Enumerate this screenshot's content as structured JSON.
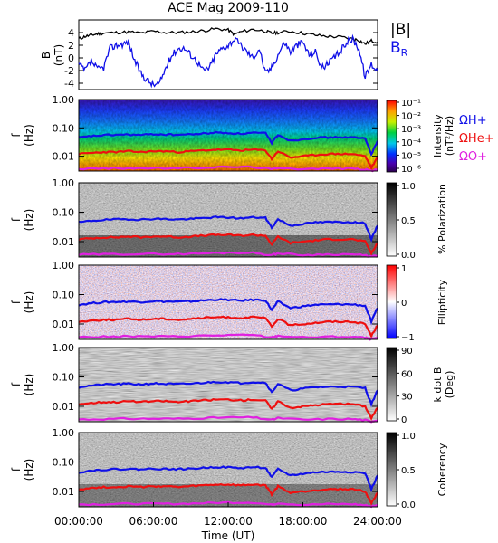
{
  "chart_data": {
    "type": "line",
    "title": "ACE Mag 2009-110",
    "xlabel": "Time (UT)",
    "x_ticks": [
      "00:00:00",
      "06:00:00",
      "12:00:00",
      "18:00:00",
      "24:00:00"
    ],
    "xlim_hours": [
      0,
      24
    ],
    "panels": [
      {
        "id": "b-field",
        "ylabel": [
          "B",
          "(nT)"
        ],
        "y_ticks": [
          "4",
          "2",
          "0",
          "-2",
          "-4"
        ],
        "ylim": [
          -5,
          6
        ],
        "legend": {
          "b_total": "|B|",
          "b_r": "B",
          "b_r_sub": "R"
        },
        "series": [
          {
            "name": "|B|",
            "color": "#000000",
            "x": [
              0,
              0.5,
              1,
              1.5,
              2,
              3,
              4,
              5,
              6,
              7,
              8,
              9,
              10,
              11,
              12,
              12.5,
              13,
              14,
              15,
              15.5,
              16,
              17,
              18,
              19,
              20,
              21,
              22,
              22.5,
              23,
              23.5,
              24
            ],
            "values": [
              3.0,
              3.4,
              3.6,
              3.8,
              3.9,
              4.0,
              4.1,
              3.9,
              4.2,
              4.0,
              4.0,
              4.1,
              4.3,
              4.6,
              4.4,
              3.7,
              4.1,
              4.5,
              4.2,
              3.9,
              4.0,
              4.2,
              3.9,
              3.6,
              3.4,
              3.3,
              3.0,
              2.8,
              2.2,
              2.7,
              2.5
            ]
          },
          {
            "name": "B",
            "color": "#1010e8",
            "x": [
              0,
              0.5,
              1,
              1.5,
              2,
              2.5,
              3,
              3.5,
              4,
              4.5,
              5,
              5.5,
              6,
              6.5,
              7,
              7.5,
              8,
              8.5,
              9,
              9.5,
              10,
              10.5,
              11,
              11.5,
              12,
              12.5,
              13,
              13.5,
              14,
              14.5,
              15,
              15.5,
              16,
              16.5,
              17,
              17.5,
              18,
              18.5,
              19,
              19.5,
              20,
              20.5,
              21,
              21.5,
              22,
              22.5,
              23,
              23.5,
              24
            ],
            "values": [
              -1.0,
              -2.0,
              -0.5,
              -1.8,
              -1.5,
              1.5,
              2.0,
              2.2,
              2.5,
              -0.5,
              -2.5,
              -3.5,
              -4.3,
              -4.0,
              -1.5,
              0.5,
              1.5,
              1.5,
              0.5,
              -0.5,
              -2.0,
              -1.5,
              0.5,
              1.5,
              2.0,
              3.0,
              2.0,
              1.0,
              0.0,
              1.5,
              -2.5,
              -1.5,
              0.5,
              2.5,
              1.0,
              2.0,
              2.5,
              0.5,
              1.0,
              -1.5,
              -1.0,
              0.0,
              1.0,
              2.5,
              3.0,
              1.5,
              -3.0,
              -1.0,
              -2.0
            ]
          }
        ]
      },
      {
        "id": "intensity",
        "kind": "spectrogram",
        "ylabel": [
          "f",
          "(Hz)"
        ],
        "y_ticks": [
          "1.00",
          "0.10",
          "0.01"
        ],
        "ylim_hz": [
          0.003,
          1.0
        ],
        "yscale": "log",
        "colorbar": {
          "label": "Intensity",
          "unit": "(nT²/Hz)",
          "ticks": [
            "10⁻¹",
            "10⁻²",
            "10⁻³",
            "10⁻⁴",
            "10⁻⁵",
            "10⁻⁶"
          ],
          "colormap": "rainbow"
        },
        "gyro_labels": [
          "ΩH+",
          "ΩHe+",
          "ΩO+"
        ]
      },
      {
        "id": "polarization",
        "kind": "spectrogram",
        "ylabel": [
          "f",
          "(Hz)"
        ],
        "y_ticks": [
          "1.00",
          "0.10",
          "0.01"
        ],
        "colorbar": {
          "label": "% Polarization",
          "ticks": [
            "1.0",
            "0.5",
            "0.0"
          ],
          "colormap": "gray"
        }
      },
      {
        "id": "ellipticity",
        "kind": "spectrogram",
        "ylabel": [
          "f",
          "(Hz)"
        ],
        "y_ticks": [
          "1.00",
          "0.10",
          "0.01"
        ],
        "colorbar": {
          "label": "Ellipticity",
          "ticks": [
            "1",
            "0",
            "−1"
          ],
          "colormap": "red-white-blue"
        }
      },
      {
        "id": "kdotb",
        "kind": "spectrogram",
        "ylabel": [
          "f",
          "(Hz)"
        ],
        "y_ticks": [
          "1.00",
          "0.10",
          "0.01"
        ],
        "colorbar": {
          "label": "k dot B",
          "unit": "(Deg)",
          "ticks": [
            "90",
            "60",
            "30",
            "0"
          ],
          "colormap": "gray-reversed"
        }
      },
      {
        "id": "coherency",
        "kind": "spectrogram",
        "ylabel": [
          "f",
          "(Hz)"
        ],
        "y_ticks": [
          "1.00",
          "0.10",
          "0.01"
        ],
        "colorbar": {
          "label": "Coherency",
          "ticks": [
            "1.0",
            "0.5",
            "0.0"
          ],
          "colormap": "gray"
        }
      }
    ],
    "gyrofrequency_series": [
      {
        "name": "ΩH+",
        "color": "#1010e8",
        "x": [
          0,
          1,
          2,
          3,
          4,
          5,
          6,
          7,
          8,
          9,
          10,
          11,
          12,
          13,
          14,
          15,
          15.5,
          16,
          17,
          18,
          19,
          20,
          21,
          22,
          23,
          23.5,
          24
        ],
        "values_hz": [
          0.045,
          0.051,
          0.055,
          0.057,
          0.058,
          0.056,
          0.06,
          0.058,
          0.057,
          0.059,
          0.063,
          0.068,
          0.066,
          0.062,
          0.067,
          0.064,
          0.03,
          0.058,
          0.035,
          0.04,
          0.045,
          0.046,
          0.047,
          0.046,
          0.042,
          0.012,
          0.035
        ]
      },
      {
        "name": "ΩHe+",
        "color": "#ee1010",
        "x": [
          0,
          1,
          2,
          3,
          4,
          5,
          6,
          7,
          8,
          9,
          10,
          11,
          12,
          13,
          14,
          15,
          15.5,
          16,
          17,
          18,
          19,
          20,
          21,
          22,
          23,
          23.5,
          24
        ],
        "values_hz": [
          0.012,
          0.013,
          0.014,
          0.014,
          0.015,
          0.014,
          0.015,
          0.015,
          0.014,
          0.015,
          0.016,
          0.017,
          0.017,
          0.016,
          0.017,
          0.016,
          0.008,
          0.015,
          0.009,
          0.01,
          0.011,
          0.012,
          0.012,
          0.012,
          0.01,
          0.004,
          0.009
        ]
      },
      {
        "name": "ΩO+",
        "color": "#e020e0",
        "x": [
          0,
          2,
          4,
          6,
          8,
          10,
          12,
          14,
          15.5,
          16,
          18,
          20,
          22,
          23,
          23.5,
          24
        ],
        "values_hz": [
          0.0036,
          0.0037,
          0.0038,
          0.0038,
          0.0038,
          0.004,
          0.0042,
          0.0042,
          0.0035,
          0.004,
          0.0035,
          0.0037,
          0.0037,
          0.0034,
          0.0031,
          0.0034
        ]
      }
    ]
  }
}
